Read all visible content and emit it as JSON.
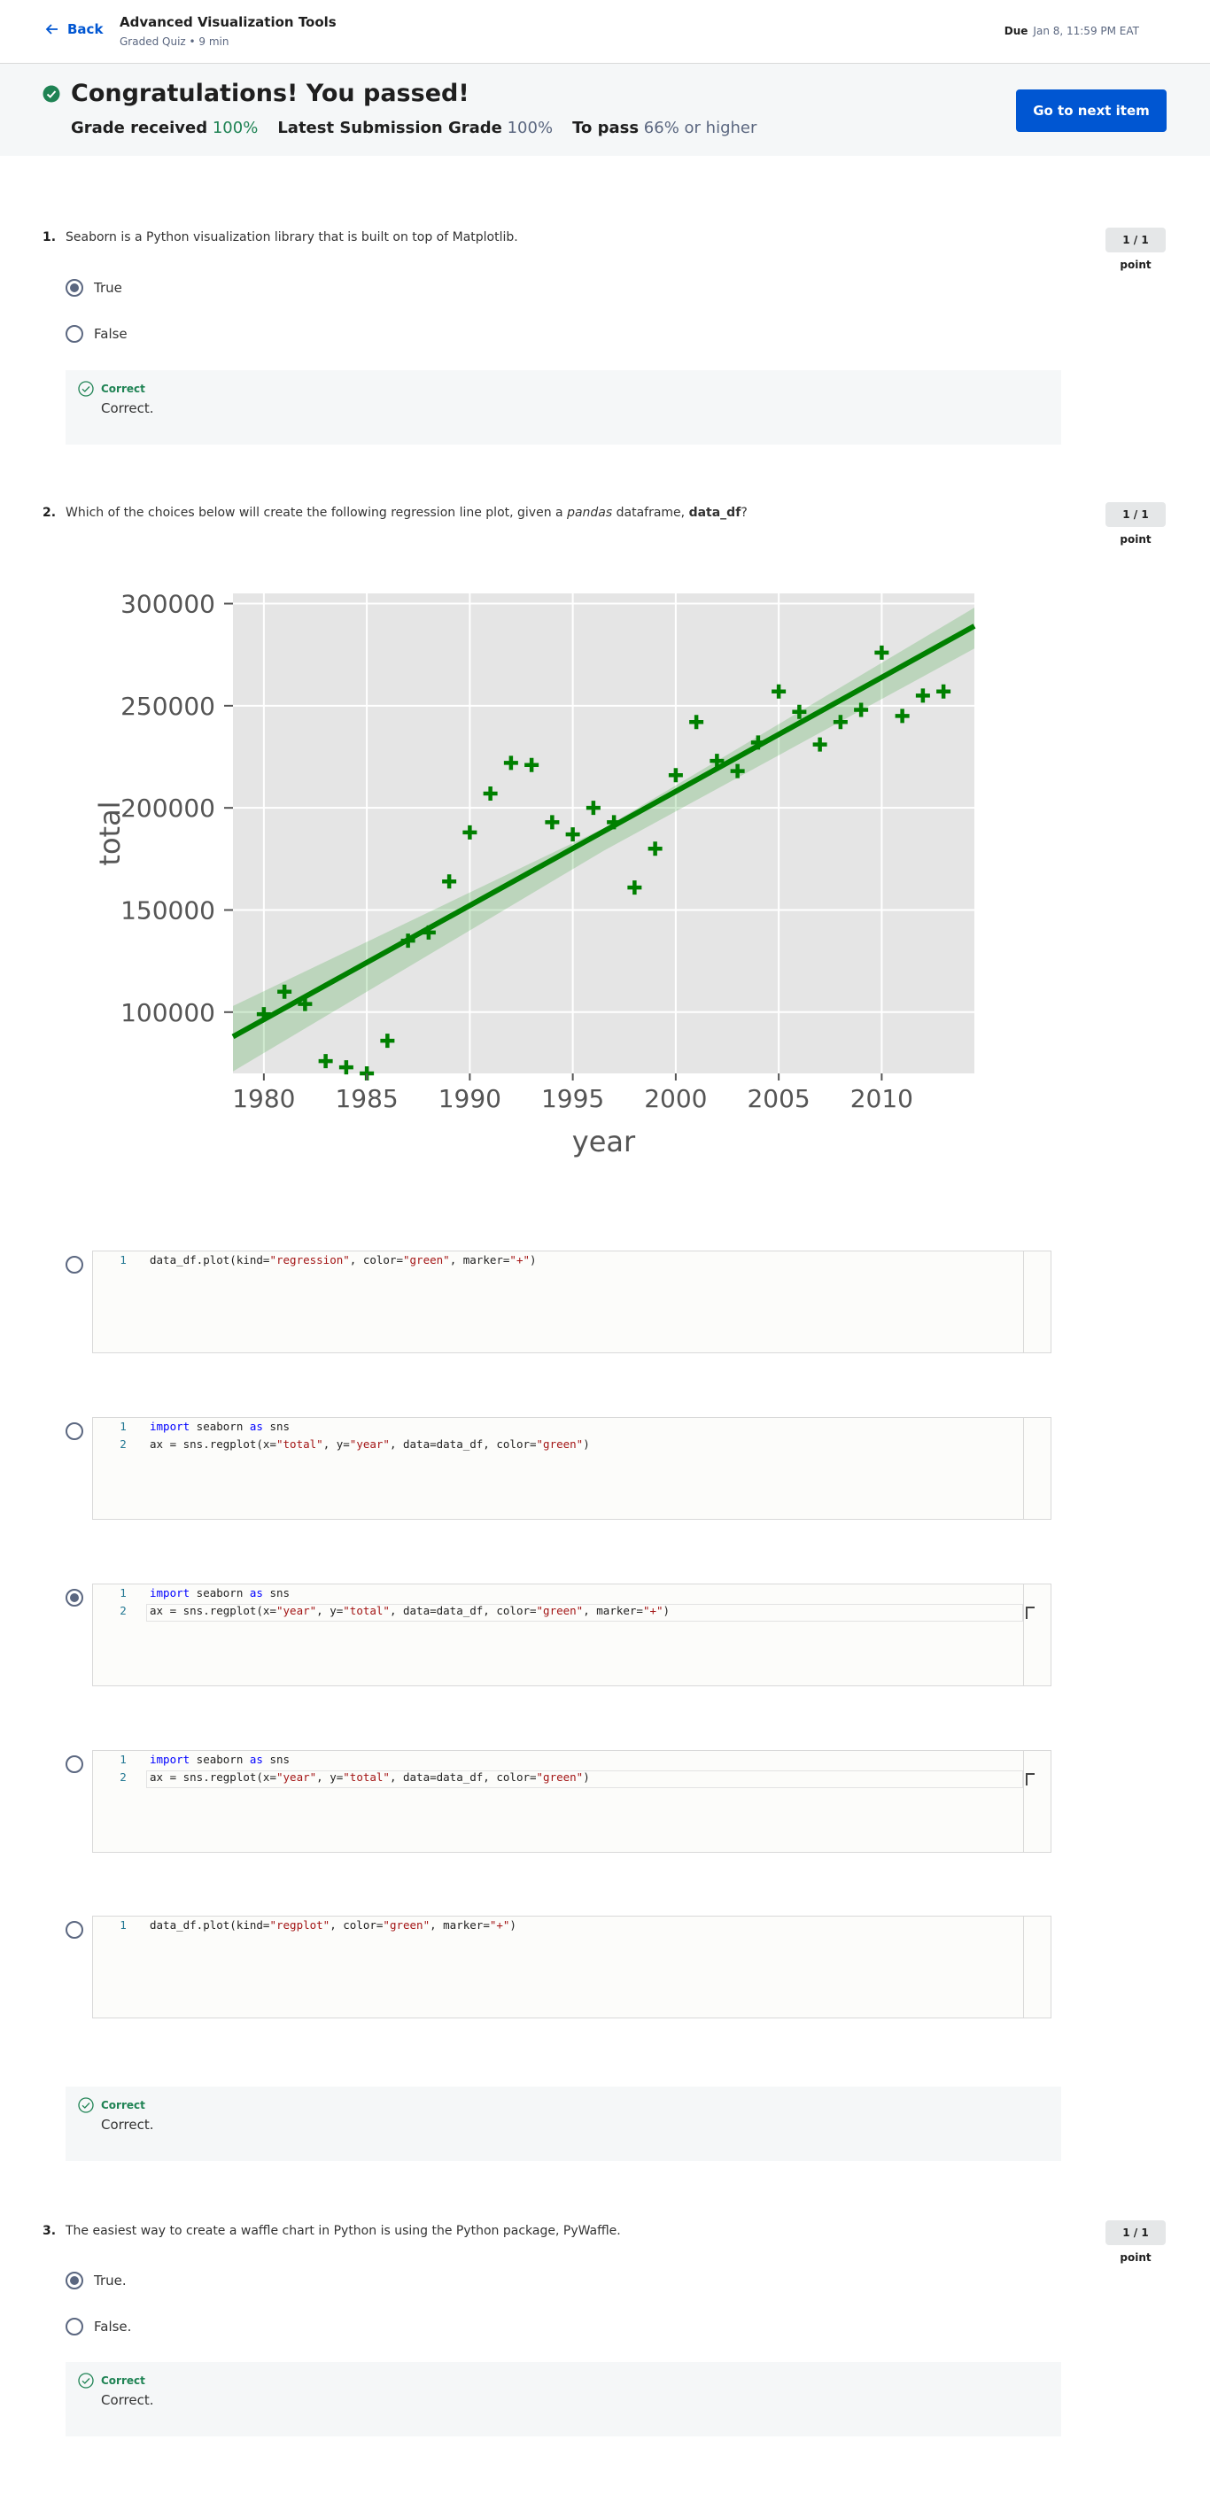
{
  "header": {
    "back_label": "Back",
    "course_title": "Advanced Visualization Tools",
    "course_sub": "Graded Quiz • 9 min",
    "due_label": "Due",
    "due_value": "Jan 8, 11:59 PM EAT"
  },
  "banner": {
    "title": "Congratulations! You passed!",
    "grade_received_label": "Grade received",
    "grade_received_value": "100%",
    "latest_label": "Latest Submission Grade",
    "latest_value": "100%",
    "to_pass_label": "To pass",
    "to_pass_value": "66%",
    "to_pass_suffix": "or higher",
    "next_button": "Go to next item"
  },
  "questions": [
    {
      "number": "1.",
      "text": "Seaborn is a Python visualization library that is built on top of Matplotlib.",
      "points": "1 / 1 point",
      "options": [
        {
          "label": "True",
          "selected": true
        },
        {
          "label": "False",
          "selected": false
        }
      ],
      "feedback_title": "Correct",
      "feedback_text": "Correct."
    },
    {
      "number": "2.",
      "text_before": "Which of the choices below will create the following regression line plot, given a ",
      "text_italic": "pandas",
      "text_mid": " dataframe, ",
      "text_bold": "data_df",
      "text_after": "?",
      "points": "1 / 1 point",
      "feedback_title": "Correct",
      "feedback_text": "Correct."
    },
    {
      "number": "3.",
      "text": "The easiest way to create a waffle chart in Python is using the Python package, PyWaffle.",
      "points": "1 / 1 point",
      "options": [
        {
          "label": "True.",
          "selected": true
        },
        {
          "label": "False.",
          "selected": false
        }
      ],
      "feedback_title": "Correct",
      "feedback_text": "Correct."
    }
  ],
  "code_options": [
    {
      "selected": false,
      "lines": [
        [
          {
            "t": "data_df.plot(kind=",
            "c": ""
          },
          {
            "t": "\"regression\"",
            "c": "str"
          },
          {
            "t": ", color=",
            "c": ""
          },
          {
            "t": "\"green\"",
            "c": "str"
          },
          {
            "t": ", marker=",
            "c": ""
          },
          {
            "t": "\"+\"",
            "c": "str"
          },
          {
            "t": ")",
            "c": ""
          }
        ]
      ]
    },
    {
      "selected": false,
      "lines": [
        [
          {
            "t": "import",
            "c": "kw"
          },
          {
            "t": " seaborn ",
            "c": ""
          },
          {
            "t": "as",
            "c": "kw"
          },
          {
            "t": " sns",
            "c": ""
          }
        ],
        [
          {
            "t": "ax = sns.regplot(x=",
            "c": ""
          },
          {
            "t": "\"total\"",
            "c": "str"
          },
          {
            "t": ", y=",
            "c": ""
          },
          {
            "t": "\"year\"",
            "c": "str"
          },
          {
            "t": ", data=data_df, color=",
            "c": ""
          },
          {
            "t": "\"green\"",
            "c": "str"
          },
          {
            "t": ")",
            "c": ""
          }
        ]
      ]
    },
    {
      "selected": true,
      "lines": [
        [
          {
            "t": "import",
            "c": "kw"
          },
          {
            "t": " seaborn ",
            "c": ""
          },
          {
            "t": "as",
            "c": "kw"
          },
          {
            "t": " sns",
            "c": ""
          }
        ],
        [
          {
            "t": "ax = sns.regplot(x=",
            "c": ""
          },
          {
            "t": "\"year\"",
            "c": "str"
          },
          {
            "t": ", y=",
            "c": ""
          },
          {
            "t": "\"total\"",
            "c": "str"
          },
          {
            "t": ", data=data_df, color=",
            "c": ""
          },
          {
            "t": "\"green\"",
            "c": "str"
          },
          {
            "t": ", marker=",
            "c": ""
          },
          {
            "t": "\"+\"",
            "c": "str"
          },
          {
            "t": ")",
            "c": ""
          }
        ]
      ]
    },
    {
      "selected": false,
      "lines": [
        [
          {
            "t": "import",
            "c": "kw"
          },
          {
            "t": " seaborn ",
            "c": ""
          },
          {
            "t": "as",
            "c": "kw"
          },
          {
            "t": " sns",
            "c": ""
          }
        ],
        [
          {
            "t": "ax = sns.regplot(x=",
            "c": ""
          },
          {
            "t": "\"year\"",
            "c": "str"
          },
          {
            "t": ", y=",
            "c": ""
          },
          {
            "t": "\"total\"",
            "c": "str"
          },
          {
            "t": ", data=data_df, color=",
            "c": ""
          },
          {
            "t": "\"green\"",
            "c": "str"
          },
          {
            "t": ")",
            "c": ""
          }
        ]
      ]
    },
    {
      "selected": false,
      "lines": [
        [
          {
            "t": "data_df.plot(kind=",
            "c": ""
          },
          {
            "t": "\"regplot\"",
            "c": "str"
          },
          {
            "t": ", color=",
            "c": ""
          },
          {
            "t": "\"green\"",
            "c": "str"
          },
          {
            "t": ", marker=",
            "c": ""
          },
          {
            "t": "\"+\"",
            "c": "str"
          },
          {
            "t": ")",
            "c": ""
          }
        ]
      ]
    }
  ],
  "colors": {
    "accent": "#0056d2",
    "success": "#1f8354",
    "plot_marker": "#008000",
    "plot_bg": "#e5e5e5"
  },
  "chart_data": {
    "type": "scatter",
    "xlabel": "year",
    "ylabel": "total",
    "xlim": [
      1978.5,
      2014.5
    ],
    "ylim": [
      70000,
      305000
    ],
    "xticks": [
      1980,
      1985,
      1990,
      1995,
      2000,
      2005,
      2010
    ],
    "yticks": [
      100000,
      150000,
      200000,
      250000,
      300000
    ],
    "xtick_labels": [
      "1980",
      "1985",
      "1990",
      "1995",
      "2000",
      "2005",
      "2010"
    ],
    "ytick_labels": [
      "100000",
      "150000",
      "200000",
      "250000",
      "300000"
    ],
    "marker": "+",
    "grid": true,
    "x": [
      1980,
      1981,
      1982,
      1983,
      1984,
      1985,
      1986,
      1987,
      1988,
      1989,
      1990,
      1991,
      1992,
      1993,
      1994,
      1995,
      1996,
      1997,
      1998,
      1999,
      2000,
      2001,
      2002,
      2003,
      2004,
      2005,
      2006,
      2007,
      2008,
      2009,
      2010,
      2011,
      2012,
      2013
    ],
    "y": [
      99000,
      110000,
      104000,
      76000,
      73000,
      70000,
      86000,
      135000,
      139000,
      164000,
      188000,
      207000,
      222000,
      221000,
      193000,
      187000,
      200000,
      193000,
      161000,
      180000,
      216000,
      242000,
      223000,
      218000,
      232000,
      257000,
      247000,
      231000,
      242000,
      248000,
      276000,
      245000,
      255000,
      257000
    ],
    "regression_line": {
      "x": [
        1978.5,
        2014.5
      ],
      "y": [
        88000,
        289000
      ]
    },
    "confidence_band": {
      "x": [
        1978.5,
        1996.5,
        2014.5
      ],
      "upper": [
        103000,
        190000,
        298000
      ],
      "lower": [
        71000,
        179000,
        278000
      ]
    }
  }
}
